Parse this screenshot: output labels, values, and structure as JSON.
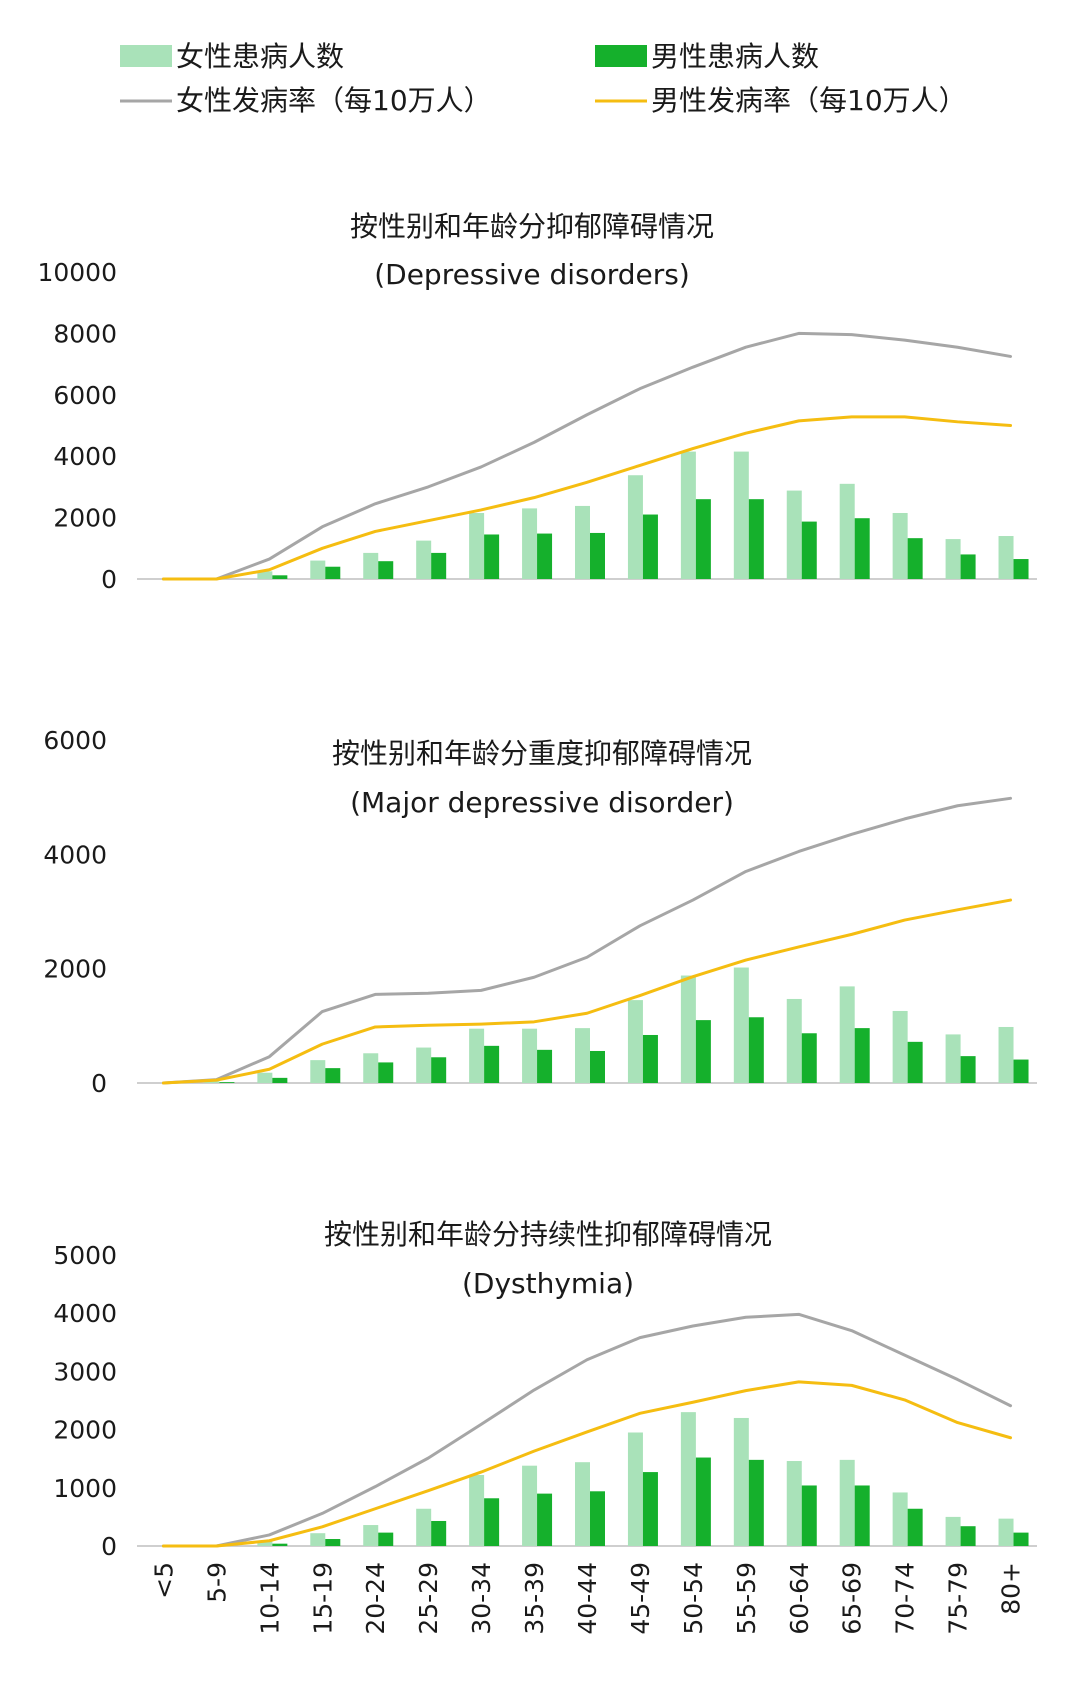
{
  "legend": {
    "female_cases": "女性患病人数",
    "male_cases": "男性患病人数",
    "female_rate": "女性发病率（每10万人）",
    "male_rate": "男性发病率（每10万人）"
  },
  "colors": {
    "female_cases": "#a9e2b9",
    "male_cases": "#15b02c",
    "female_rate": "#a6a6a6",
    "male_rate": "#f5bd11",
    "axis": "#bfbfbf"
  },
  "chart_data": [
    {
      "type": "bar",
      "title": "按性别和年龄分抑郁障碍情况",
      "subtitle": "(Depressive disorders)",
      "categories": [
        "<5",
        "5-9",
        "10-14",
        "15-19",
        "20-24",
        "25-29",
        "30-34",
        "35-39",
        "40-44",
        "45-49",
        "50-54",
        "55-59",
        "60-64",
        "65-69",
        "70-74",
        "75-79",
        "80+"
      ],
      "ylim": [
        0,
        10000
      ],
      "yticks": [
        "0",
        "2000",
        "4000",
        "6000",
        "8000",
        "10000"
      ],
      "series": [
        {
          "name": "女性患病人数",
          "type": "bar",
          "values": [
            0,
            0,
            250,
            600,
            850,
            1250,
            2150,
            2300,
            2380,
            3380,
            4150,
            4150,
            2880,
            3100,
            2150,
            1300,
            1400
          ]
        },
        {
          "name": "男性患病人数",
          "type": "bar",
          "values": [
            0,
            0,
            120,
            400,
            580,
            850,
            1450,
            1480,
            1500,
            2100,
            2600,
            2600,
            1870,
            1980,
            1330,
            800,
            650
          ]
        },
        {
          "name": "女性发病率（每10万人）",
          "type": "line",
          "values": [
            0,
            0,
            650,
            1700,
            2450,
            3000,
            3650,
            4450,
            5350,
            6200,
            6900,
            7550,
            8000,
            7960,
            7780,
            7550,
            7250
          ]
        },
        {
          "name": "男性发病率（每10万人）",
          "type": "line",
          "values": [
            0,
            0,
            300,
            1000,
            1550,
            1900,
            2250,
            2650,
            3150,
            3700,
            4250,
            4750,
            5150,
            5280,
            5280,
            5120,
            5000
          ]
        }
      ]
    },
    {
      "type": "bar",
      "title": "按性别和年龄分重度抑郁障碍情况",
      "subtitle": "(Major depressive disorder)",
      "categories": [
        "<5",
        "5-9",
        "10-14",
        "15-19",
        "20-24",
        "25-29",
        "30-34",
        "35-39",
        "40-44",
        "45-49",
        "50-54",
        "55-59",
        "60-64",
        "65-69",
        "70-74",
        "75-79",
        "80+"
      ],
      "ylim": [
        0,
        6000
      ],
      "yticks": [
        "0",
        "2000",
        "4000",
        "6000"
      ],
      "series": [
        {
          "name": "女性患病人数",
          "type": "bar",
          "values": [
            0,
            30,
            180,
            400,
            520,
            620,
            950,
            950,
            960,
            1450,
            1880,
            2020,
            1470,
            1690,
            1260,
            850,
            980
          ]
        },
        {
          "name": "男性患病人数",
          "type": "bar",
          "values": [
            0,
            15,
            90,
            260,
            360,
            450,
            650,
            580,
            560,
            840,
            1100,
            1150,
            870,
            960,
            720,
            470,
            410
          ]
        },
        {
          "name": "女性发病率（每10万人）",
          "type": "line",
          "values": [
            0,
            60,
            460,
            1250,
            1550,
            1570,
            1620,
            1850,
            2200,
            2750,
            3200,
            3700,
            4050,
            4350,
            4620,
            4850,
            4980
          ]
        },
        {
          "name": "男性发病率（每10万人）",
          "type": "line",
          "values": [
            0,
            50,
            240,
            680,
            980,
            1010,
            1030,
            1070,
            1220,
            1530,
            1860,
            2150,
            2380,
            2600,
            2850,
            3030,
            3200
          ]
        }
      ]
    },
    {
      "type": "bar",
      "title": "按性别和年龄分持续性抑郁障碍情况",
      "subtitle": "(Dysthymia)",
      "categories": [
        "<5",
        "5-9",
        "10-14",
        "15-19",
        "20-24",
        "25-29",
        "30-34",
        "35-39",
        "40-44",
        "45-49",
        "50-54",
        "55-59",
        "60-64",
        "65-69",
        "70-74",
        "75-79",
        "80+"
      ],
      "ylim": [
        0,
        5000
      ],
      "yticks": [
        "0",
        "1000",
        "2000",
        "3000",
        "4000",
        "5000"
      ],
      "series": [
        {
          "name": "女性患病人数",
          "type": "bar",
          "values": [
            0,
            0,
            80,
            220,
            360,
            640,
            1220,
            1380,
            1440,
            1950,
            2300,
            2200,
            1460,
            1480,
            920,
            500,
            470
          ]
        },
        {
          "name": "男性患病人数",
          "type": "bar",
          "values": [
            0,
            0,
            40,
            120,
            230,
            430,
            820,
            900,
            940,
            1270,
            1520,
            1480,
            1040,
            1040,
            640,
            340,
            230
          ]
        },
        {
          "name": "女性发病率（每10万人）",
          "type": "line",
          "values": [
            0,
            0,
            190,
            560,
            1020,
            1510,
            2090,
            2680,
            3200,
            3580,
            3780,
            3930,
            3980,
            3700,
            3280,
            2860,
            2410
          ]
        },
        {
          "name": "男性发病率（每10万人）",
          "type": "line",
          "values": [
            0,
            0,
            90,
            330,
            640,
            950,
            1270,
            1630,
            1960,
            2280,
            2470,
            2670,
            2820,
            2760,
            2510,
            2120,
            1860
          ]
        }
      ]
    }
  ]
}
